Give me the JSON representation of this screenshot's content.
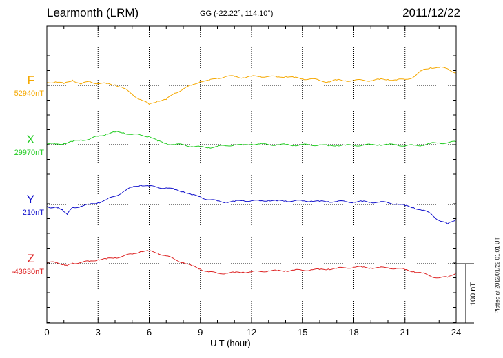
{
  "header": {
    "station": "Learmonth (LRM)",
    "coords": "GG (-22.22°, 114.10°)",
    "date": "2011/12/22"
  },
  "side": {
    "plotted": "Plotted at 2012/01/22 01:01 UT",
    "scale_label": "100 nT"
  },
  "chart_data": {
    "type": "line",
    "xlabel": "U T (hour)",
    "xlim": [
      0,
      24
    ],
    "xticks": [
      0,
      3,
      6,
      9,
      12,
      15,
      18,
      21,
      24
    ],
    "scale_nT": 100,
    "grid": true,
    "series": [
      {
        "name": "F",
        "baseline_label": "52940nT",
        "color": "#f5a800",
        "x": [
          0,
          0.5,
          1,
          1.5,
          2,
          2.5,
          3,
          3.5,
          4,
          4.5,
          5,
          5.5,
          6,
          6.5,
          7,
          7.5,
          8,
          8.5,
          9,
          9.5,
          10,
          10.5,
          11,
          11.5,
          12,
          12.5,
          13,
          13.5,
          14,
          14.5,
          15,
          15.5,
          16,
          16.5,
          17,
          17.5,
          18,
          18.5,
          19,
          19.5,
          20,
          20.5,
          21,
          21.5,
          22,
          22.5,
          23,
          23.5,
          24
        ],
        "y": [
          5,
          6,
          3,
          9,
          2,
          7,
          3,
          3,
          1,
          -5,
          -15,
          -24,
          -32,
          -26,
          -24,
          -13,
          -6,
          0,
          7,
          8,
          12,
          15,
          15,
          13,
          15,
          15,
          15,
          14,
          15,
          13,
          11,
          11,
          8,
          6,
          9,
          8,
          8,
          9,
          8,
          10,
          10,
          9,
          10,
          14,
          25,
          30,
          30,
          28,
          21
        ]
      },
      {
        "name": "X",
        "baseline_label": "29970nT",
        "color": "#22cc22",
        "x": [
          0,
          0.5,
          1,
          1.5,
          2,
          2.5,
          3,
          3.5,
          4,
          4.5,
          5,
          5.5,
          6,
          6.5,
          7,
          7.5,
          8,
          8.5,
          9,
          9.5,
          10,
          10.5,
          11,
          11.5,
          12,
          12.5,
          13,
          13.5,
          14,
          14.5,
          15,
          15.5,
          16,
          16.5,
          17,
          17.5,
          18,
          18.5,
          19,
          19.5,
          20,
          20.5,
          21,
          21.5,
          22,
          22.5,
          23,
          23.5,
          24
        ],
        "y": [
          1,
          1,
          2,
          5,
          8,
          9,
          14,
          18,
          21,
          20,
          17,
          16,
          14,
          6,
          2,
          0,
          0,
          -3,
          -4,
          -5,
          -3,
          -2,
          0,
          -1,
          1,
          1,
          0,
          0,
          0,
          -1,
          0,
          -1,
          0,
          -2,
          -1,
          -1,
          -1,
          -1,
          0,
          0,
          0,
          0,
          -2,
          -1,
          -1,
          2,
          3,
          3,
          5
        ]
      },
      {
        "name": "Y",
        "baseline_label": "210nT",
        "color": "#1010cc",
        "x": [
          0,
          0.3,
          0.6,
          0.9,
          1.2,
          1.5,
          2,
          2.5,
          3,
          3.5,
          4,
          4.5,
          5,
          5.5,
          6,
          6.5,
          7,
          7.5,
          8,
          8.5,
          9,
          9.5,
          10,
          10.5,
          11,
          11.5,
          12,
          12.5,
          13,
          13.5,
          14,
          14.5,
          15,
          15.5,
          16,
          16.5,
          17,
          17.5,
          18,
          18.5,
          19,
          19.5,
          20,
          20.5,
          21,
          21.5,
          22,
          22.5,
          23,
          23.5,
          24
        ],
        "y": [
          -3,
          -5,
          -6,
          -8,
          -17,
          -5,
          -3,
          0,
          3,
          8,
          14,
          22,
          29,
          33,
          31,
          29,
          28,
          25,
          22,
          16,
          13,
          8,
          6,
          4,
          5,
          7,
          6,
          6,
          7,
          6,
          6,
          6,
          6,
          6,
          5,
          5,
          5,
          5,
          4,
          5,
          4,
          4,
          3,
          1,
          -2,
          -5,
          -10,
          -15,
          -27,
          -33,
          -25
        ]
      },
      {
        "name": "Z",
        "baseline_label": "-43630nT",
        "color": "#dd2222",
        "x": [
          0,
          0.5,
          1,
          1.2,
          1.5,
          2,
          2.5,
          3,
          3.5,
          4,
          4.5,
          5,
          5.5,
          6,
          6.5,
          7,
          7.5,
          8,
          8.5,
          9,
          9.5,
          10,
          10.5,
          11,
          11.5,
          12,
          12.5,
          13,
          13.5,
          14,
          14.5,
          15,
          15.5,
          16,
          16.5,
          17,
          17.5,
          18,
          18.5,
          19,
          19.5,
          20,
          20.5,
          21,
          21.5,
          22,
          22.5,
          23,
          23.5,
          24
        ],
        "y": [
          2,
          2,
          -1,
          -4,
          1,
          2,
          4,
          7,
          8,
          10,
          13,
          16,
          21,
          21,
          18,
          13,
          7,
          2,
          -4,
          -9,
          -14,
          -16,
          -16,
          -15,
          -14,
          -14,
          -13,
          -12,
          -12,
          -12,
          -11,
          -11,
          -10,
          -10,
          -9,
          -8,
          -7,
          -6,
          -6,
          -7,
          -7,
          -7,
          -8,
          -10,
          -13,
          -16,
          -21,
          -24,
          -23,
          -15
        ]
      }
    ]
  }
}
